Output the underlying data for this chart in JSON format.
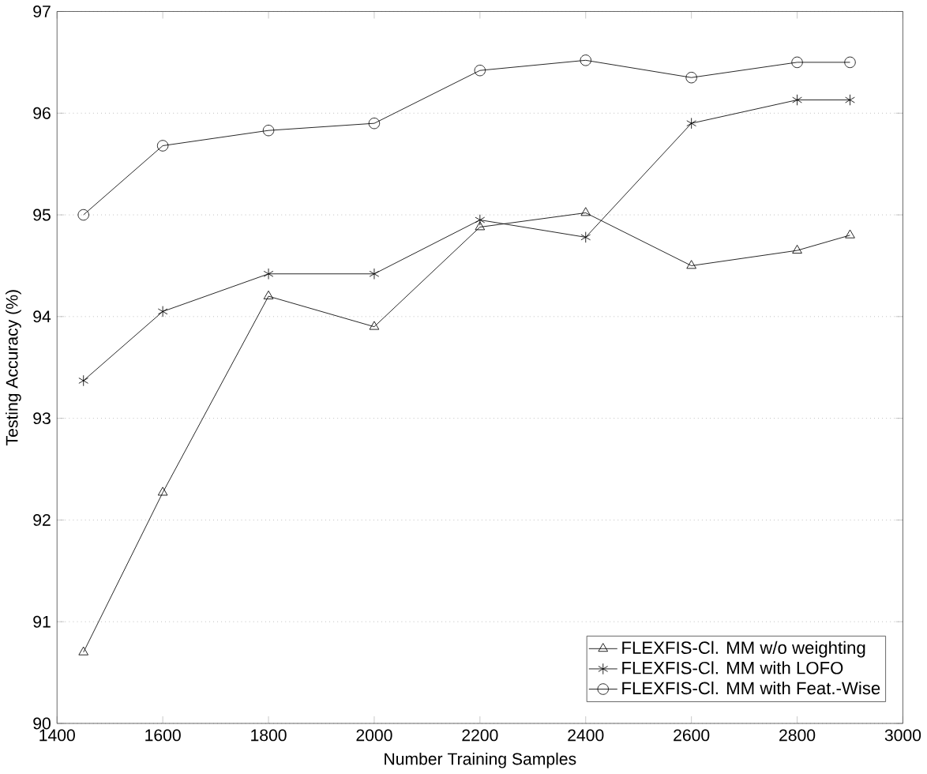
{
  "chart_data": {
    "type": "line",
    "xlabel": "Number Training Samples",
    "ylabel": "Testing Accuracy (%)",
    "x": [
      1450,
      1600,
      1800,
      2000,
      2200,
      2400,
      2600,
      2800,
      2900
    ],
    "series": [
      {
        "name": "FLEXFIS-Cl. MM w/o weighting",
        "color": "#000000",
        "marker": "triangle",
        "values": [
          90.7,
          92.27,
          94.2,
          93.9,
          94.88,
          95.02,
          94.5,
          94.65,
          94.8
        ]
      },
      {
        "name": "FLEXFIS-Cl. MM with LOFO",
        "color": "#000000",
        "marker": "cross",
        "values": [
          93.37,
          94.05,
          94.42,
          94.42,
          94.95,
          94.78,
          95.9,
          96.13,
          96.13
        ]
      },
      {
        "name": "FLEXFIS-Cl. MM with Feat.-Wise",
        "color": "#000000",
        "marker": "circle",
        "values": [
          95.0,
          95.68,
          95.83,
          95.9,
          96.42,
          96.52,
          96.35,
          96.5,
          96.5
        ]
      }
    ],
    "xlim": [
      1400,
      3000
    ],
    "ylim": [
      90,
      97
    ],
    "xticks": [
      1400,
      1600,
      1800,
      2000,
      2200,
      2400,
      2600,
      2800,
      3000
    ],
    "yticks": [
      90,
      91,
      92,
      93,
      94,
      95,
      96,
      97
    ],
    "grid": "y",
    "legend": "bottom right",
    "line_style": "solid"
  }
}
